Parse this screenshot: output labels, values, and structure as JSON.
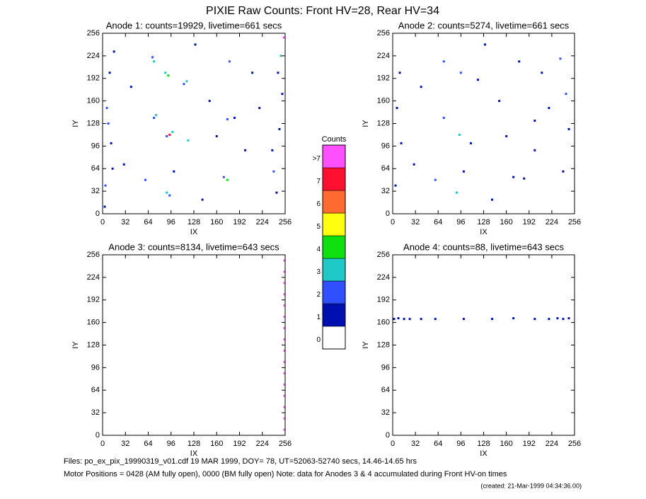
{
  "title": "PIXIE Raw Counts:  Front HV=28, Rear HV=34",
  "notes": [
    "Files: po_ex_pix_19990319_v01.cdf    19 MAR 1999, DOY= 78, UT=52063-52740 secs, 14.46-14.65 hrs",
    "Motor Positions = 0428 (AM fully open), 0000 (BM fully open)    Note: data for Anodes 3 & 4 accumulated during Front HV-on times",
    "(created: 21-Mar-1999 04:34:36.00)"
  ],
  "chart_data": [
    {
      "type": "heatmap",
      "title": "Anode 1: counts=19929, livetime=661 secs",
      "xlabel": "IX",
      "ylabel": "IY",
      "xlim": [
        0,
        256
      ],
      "ylim": [
        0,
        256
      ],
      "xticks": [
        0,
        32,
        64,
        96,
        128,
        160,
        192,
        224,
        256
      ],
      "yticks": [
        0,
        32,
        64,
        96,
        128,
        160,
        192,
        224,
        256
      ],
      "x": [
        72,
        70,
        88,
        92,
        118,
        114,
        94,
        98,
        90,
        120,
        72,
        75,
        175,
        170,
        90,
        94,
        178,
        250,
        175,
        185,
        60,
        140,
        10,
        6,
        12,
        4,
        16,
        248,
        240,
        252,
        244,
        40,
        150,
        200,
        130,
        210,
        30,
        160,
        220,
        100,
        8,
        14,
        246,
        238,
        3,
        254
      ],
      "y": [
        216,
        222,
        200,
        196,
        188,
        184,
        112,
        116,
        110,
        104,
        136,
        140,
        48,
        52,
        30,
        26,
        216,
        224,
        134,
        136,
        48,
        20,
        200,
        150,
        100,
        40,
        230,
        120,
        60,
        170,
        30,
        180,
        160,
        90,
        240,
        200,
        70,
        110,
        150,
        60,
        128,
        64,
        200,
        90,
        10,
        250
      ],
      "values": [
        3,
        2,
        3,
        4,
        3,
        2,
        7,
        3,
        2,
        3,
        2,
        3,
        4,
        2,
        3,
        2,
        2,
        3,
        2,
        1,
        2,
        1,
        1,
        2,
        1,
        2,
        1,
        1,
        2,
        1,
        1,
        1,
        1,
        1,
        1,
        1,
        1,
        1,
        1,
        1,
        2,
        1,
        1,
        1,
        1,
        8
      ]
    },
    {
      "type": "heatmap",
      "title": "Anode 2: counts=5274, livetime=661 secs",
      "xlabel": "IX",
      "ylabel": "IY",
      "xlim": [
        0,
        256
      ],
      "ylim": [
        0,
        256
      ],
      "xticks": [
        0,
        32,
        64,
        96,
        128,
        160,
        192,
        224,
        256
      ],
      "yticks": [
        0,
        32,
        64,
        96,
        128,
        160,
        192,
        224,
        256
      ],
      "x": [
        72,
        96,
        94,
        120,
        72,
        178,
        200,
        90,
        170,
        60,
        140,
        10,
        6,
        12,
        4,
        240,
        244,
        248,
        236,
        40,
        150,
        200,
        130,
        210,
        30,
        160,
        220,
        100,
        185,
        110
      ],
      "y": [
        216,
        200,
        112,
        190,
        136,
        216,
        132,
        30,
        52,
        48,
        20,
        200,
        150,
        100,
        40,
        60,
        170,
        120,
        220,
        180,
        160,
        90,
        240,
        200,
        70,
        110,
        150,
        60,
        50,
        100
      ],
      "values": [
        2,
        2,
        3,
        1,
        2,
        1,
        1,
        3,
        1,
        2,
        1,
        1,
        1,
        1,
        1,
        1,
        2,
        1,
        2,
        1,
        1,
        1,
        1,
        1,
        1,
        1,
        1,
        1,
        1,
        1
      ]
    },
    {
      "type": "heatmap",
      "title": "Anode 3: counts=8134, livetime=643 secs",
      "xlabel": "IX",
      "ylabel": "IY",
      "xlim": [
        0,
        256
      ],
      "ylim": [
        0,
        256
      ],
      "xticks": [
        0,
        32,
        64,
        96,
        128,
        160,
        192,
        224,
        256
      ],
      "yticks": [
        0,
        32,
        64,
        96,
        128,
        160,
        192,
        224,
        256
      ],
      "x": [
        255,
        255,
        255,
        255,
        255,
        255,
        255,
        255,
        255,
        255,
        255,
        255,
        255,
        255,
        255,
        255
      ],
      "y": [
        8,
        24,
        40,
        56,
        72,
        88,
        104,
        120,
        136,
        152,
        168,
        184,
        200,
        216,
        232,
        248
      ],
      "values": [
        8,
        8,
        8,
        8,
        8,
        8,
        8,
        8,
        8,
        8,
        8,
        8,
        8,
        8,
        8,
        8
      ]
    },
    {
      "type": "heatmap",
      "title": "Anode 4: counts=88, livetime=643 secs",
      "xlabel": "IX",
      "ylabel": "IY",
      "xlim": [
        0,
        256
      ],
      "ylim": [
        0,
        256
      ],
      "xticks": [
        0,
        32,
        64,
        96,
        128,
        160,
        192,
        224,
        256
      ],
      "yticks": [
        0,
        32,
        64,
        96,
        128,
        160,
        192,
        224,
        256
      ],
      "x": [
        2,
        8,
        16,
        24,
        40,
        60,
        100,
        140,
        170,
        200,
        220,
        232,
        240,
        248
      ],
      "y": [
        165,
        166,
        165,
        165,
        165,
        165,
        165,
        165,
        166,
        165,
        165,
        166,
        165,
        166
      ],
      "values": [
        1,
        1,
        1,
        1,
        1,
        1,
        1,
        1,
        1,
        1,
        1,
        1,
        1,
        1
      ]
    },
    {
      "type": "colorbar",
      "title": "Counts",
      "categories": [
        "0",
        "1",
        "2",
        "3",
        "4",
        "5",
        "6",
        "7",
        ">7"
      ],
      "colors": [
        "#ffffff",
        "#0010b0",
        "#3050ff",
        "#20c8c8",
        "#10e010",
        "#ffff10",
        "#ff6a30",
        "#ff1030",
        "#ff50ff"
      ]
    }
  ]
}
